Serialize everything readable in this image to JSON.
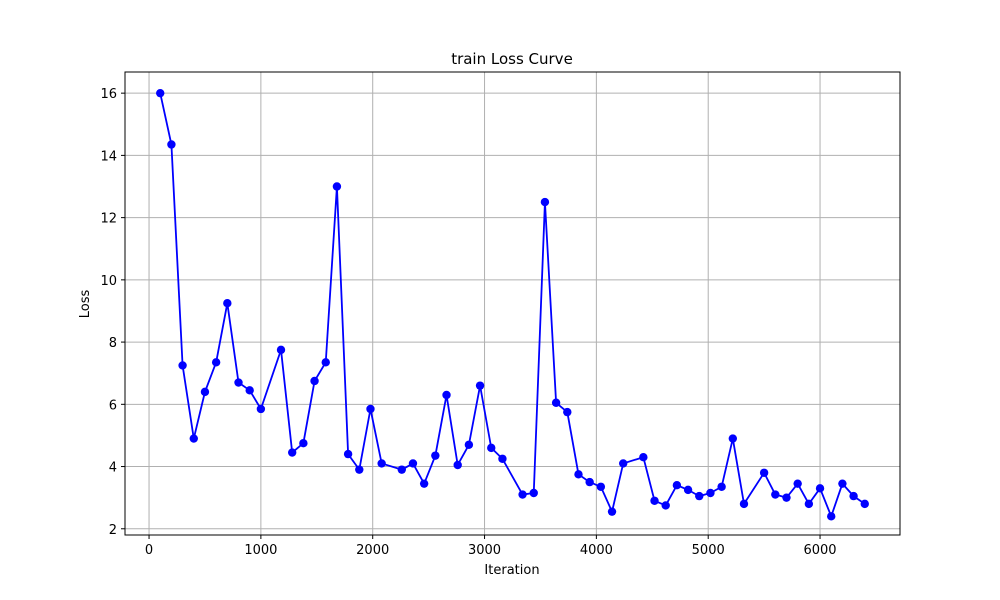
{
  "chart_data": {
    "type": "line",
    "title": "train Loss Curve",
    "xlabel": "Iteration",
    "ylabel": "Loss",
    "xlim": [
      -215,
      6715
    ],
    "ylim": [
      1.8,
      16.68
    ],
    "xticks": [
      0,
      1000,
      2000,
      3000,
      4000,
      5000,
      6000
    ],
    "yticks": [
      2,
      4,
      6,
      8,
      10,
      12,
      14,
      16
    ],
    "grid": true,
    "line_color": "#0000ff",
    "marker": "circle",
    "series": [
      {
        "x": [
          100,
          200,
          300,
          400,
          500,
          600,
          700,
          800,
          900,
          1000,
          1180,
          1280,
          1380,
          1480,
          1580,
          1680,
          1780,
          1880,
          1980,
          2080,
          2260,
          2360,
          2460,
          2560,
          2660,
          2760,
          2860,
          2960,
          3060,
          3160,
          3340,
          3440,
          3540,
          3640,
          3740,
          3840,
          3940,
          4040,
          4140,
          4240,
          4420,
          4520,
          4620,
          4720,
          4820,
          4920,
          5020,
          5120,
          5220,
          5320,
          5500,
          5600,
          5700,
          5800,
          5900,
          6000,
          6100,
          6200,
          6300,
          6400
        ],
        "values": [
          16.0,
          14.35,
          7.25,
          4.9,
          6.4,
          7.35,
          9.25,
          6.7,
          6.45,
          5.85,
          7.75,
          4.45,
          4.75,
          6.75,
          7.35,
          13.0,
          4.4,
          3.9,
          5.85,
          4.1,
          3.9,
          4.1,
          3.45,
          4.35,
          6.3,
          4.05,
          4.7,
          6.6,
          4.6,
          4.25,
          3.1,
          3.15,
          12.5,
          6.05,
          5.75,
          3.75,
          3.5,
          3.35,
          2.55,
          4.1,
          4.3,
          2.9,
          2.75,
          3.4,
          3.25,
          3.05,
          3.15,
          3.35,
          4.9,
          2.8,
          3.8,
          3.1,
          3.0,
          3.45,
          2.8,
          3.3,
          2.4,
          3.45,
          3.05,
          2.8
        ]
      }
    ]
  }
}
